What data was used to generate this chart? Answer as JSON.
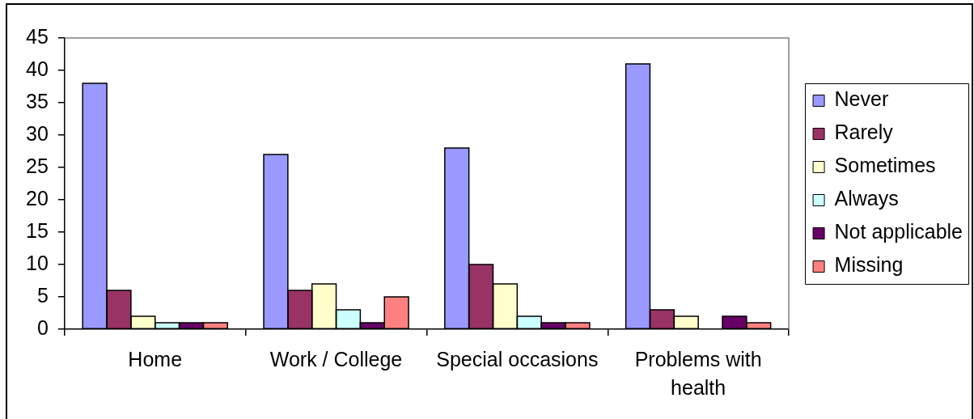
{
  "chart_data": {
    "type": "bar",
    "categories": [
      "Home",
      "Work / College",
      "Special occasions",
      "Problems with health"
    ],
    "series": [
      {
        "name": "Never",
        "color": "#9999ff",
        "values": [
          38,
          27,
          28,
          41
        ]
      },
      {
        "name": "Rarely",
        "color": "#993366",
        "values": [
          6,
          6,
          10,
          3
        ]
      },
      {
        "name": "Sometimes",
        "color": "#ffffcc",
        "values": [
          2,
          7,
          7,
          2
        ]
      },
      {
        "name": "Always",
        "color": "#ccffff",
        "values": [
          1,
          3,
          2,
          0
        ]
      },
      {
        "name": "Not applicable",
        "color": "#660066",
        "values": [
          1,
          1,
          1,
          2
        ]
      },
      {
        "name": "Missing",
        "color": "#ff8080",
        "values": [
          1,
          5,
          1,
          1
        ]
      }
    ],
    "ylim": [
      0,
      45
    ],
    "yticks": [
      0,
      5,
      10,
      15,
      20,
      25,
      30,
      35,
      40,
      45
    ],
    "legend": "right"
  }
}
